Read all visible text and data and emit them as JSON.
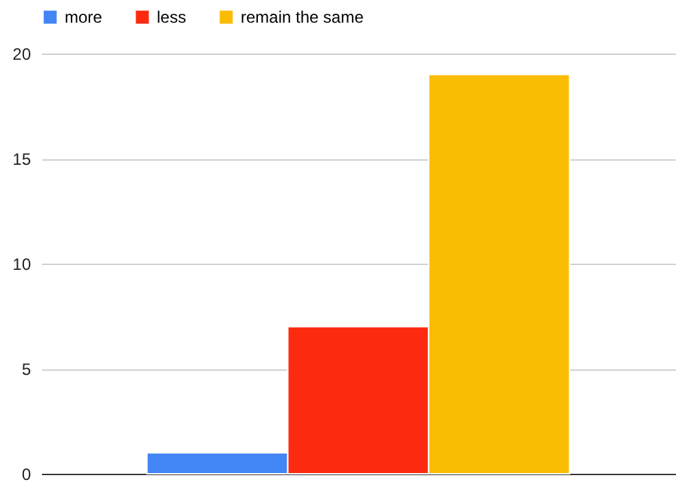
{
  "chart_data": {
    "type": "bar",
    "categories": [
      null
    ],
    "series": [
      {
        "name": "more",
        "color": "#4285f4",
        "values": [
          1
        ]
      },
      {
        "name": "less",
        "color": "#fc2b10",
        "values": [
          7
        ]
      },
      {
        "name": "remain the same",
        "color": "#fbbc04",
        "values": [
          19
        ]
      }
    ],
    "ylim": [
      0,
      20
    ],
    "yticks": [
      0,
      5,
      10,
      15,
      20
    ],
    "grid": "y",
    "legend": "top"
  }
}
